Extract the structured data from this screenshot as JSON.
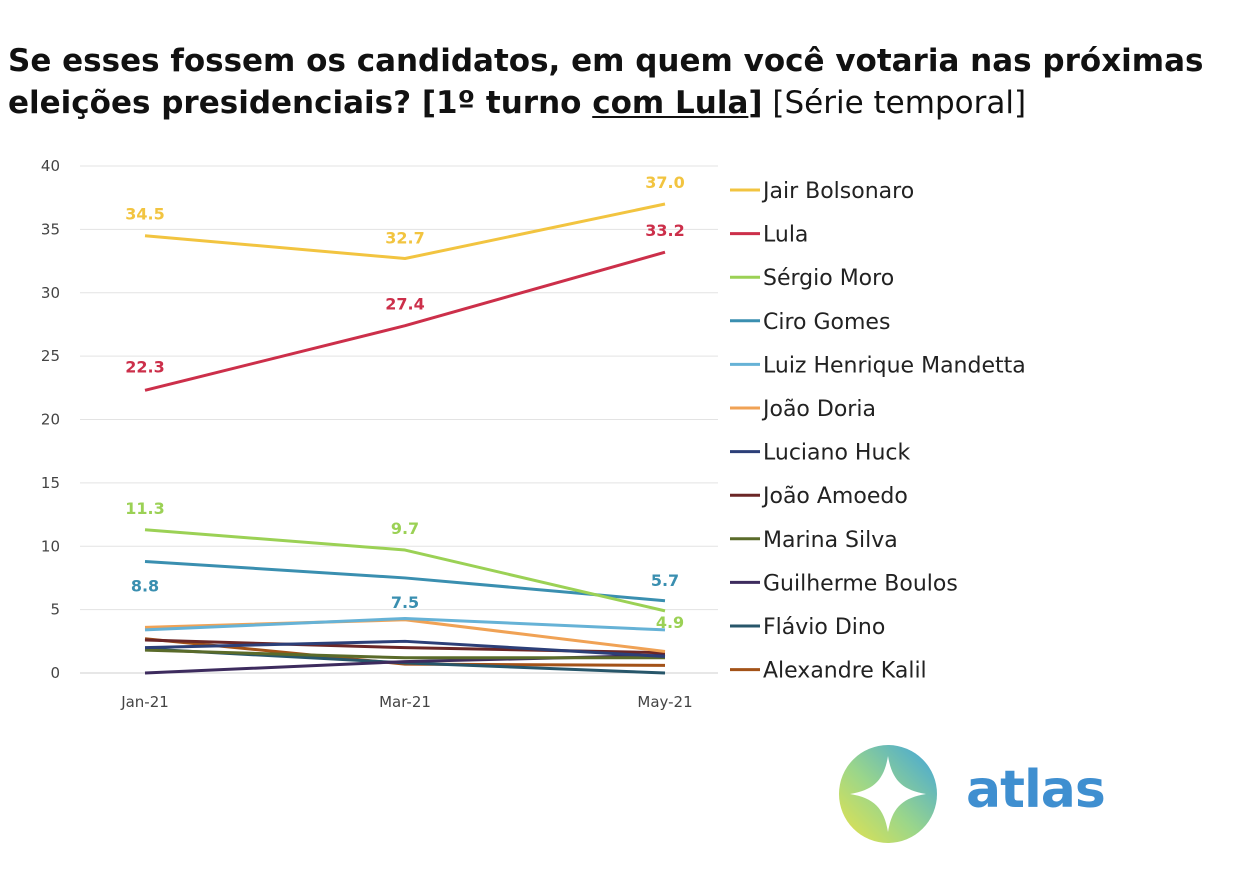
{
  "title": {
    "part1": "Se esses fossem os candidatos, em quem você votaria nas próximas eleições presidenciais? [1º turno ",
    "underlined": "com Lula",
    "part2": "]",
    "suffix": " [Série temporal]"
  },
  "brand": {
    "name": "atlas",
    "color": "#3f8fd0"
  },
  "chart_data": {
    "type": "line",
    "categories": [
      "Jan-21",
      "Mar-21",
      "May-21"
    ],
    "ylim": [
      0,
      40
    ],
    "yticks": [
      0,
      5,
      10,
      15,
      20,
      25,
      30,
      35,
      40
    ],
    "grid": true,
    "legend_position": "right",
    "series": [
      {
        "name": "Jair Bolsonaro",
        "color": "#f2c440",
        "values": [
          34.5,
          32.7,
          37.0
        ],
        "labels": [
          "34.5",
          "32.7",
          "37.0"
        ]
      },
      {
        "name": "Lula",
        "color": "#cc2f4a",
        "values": [
          22.3,
          27.4,
          33.2
        ],
        "labels": [
          "22.3",
          "27.4",
          "33.2"
        ]
      },
      {
        "name": "Sérgio Moro",
        "color": "#9bd155",
        "values": [
          11.3,
          9.7,
          4.9
        ],
        "labels": [
          "11.3",
          "9.7",
          "4.9"
        ]
      },
      {
        "name": "Ciro Gomes",
        "color": "#3a8fb0",
        "values": [
          8.8,
          7.5,
          5.7
        ],
        "labels": [
          "8.8",
          "7.5",
          "5.7"
        ]
      },
      {
        "name": "Luiz Henrique Mandetta",
        "color": "#66b2d6",
        "values": [
          3.4,
          4.3,
          3.4
        ],
        "labels": []
      },
      {
        "name": "João Doria",
        "color": "#f0a255",
        "values": [
          3.6,
          4.2,
          1.7
        ],
        "labels": []
      },
      {
        "name": "Luciano Huck",
        "color": "#2c3f78",
        "values": [
          2.0,
          2.5,
          1.3
        ],
        "labels": []
      },
      {
        "name": "João Amoedo",
        "color": "#6b2626",
        "values": [
          2.6,
          2.0,
          1.6
        ],
        "labels": []
      },
      {
        "name": "Marina Silva",
        "color": "#5a6b2a",
        "values": [
          1.8,
          1.2,
          1.2
        ],
        "labels": []
      },
      {
        "name": "Guilherme Boulos",
        "color": "#3d2b5e",
        "values": [
          0.0,
          0.9,
          1.4
        ],
        "labels": []
      },
      {
        "name": "Flávio Dino",
        "color": "#27566a",
        "values": [
          1.9,
          0.8,
          0.0
        ],
        "labels": []
      },
      {
        "name": "Alexandre Kalil",
        "color": "#a35218",
        "values": [
          2.7,
          0.7,
          0.6
        ],
        "labels": []
      }
    ]
  }
}
